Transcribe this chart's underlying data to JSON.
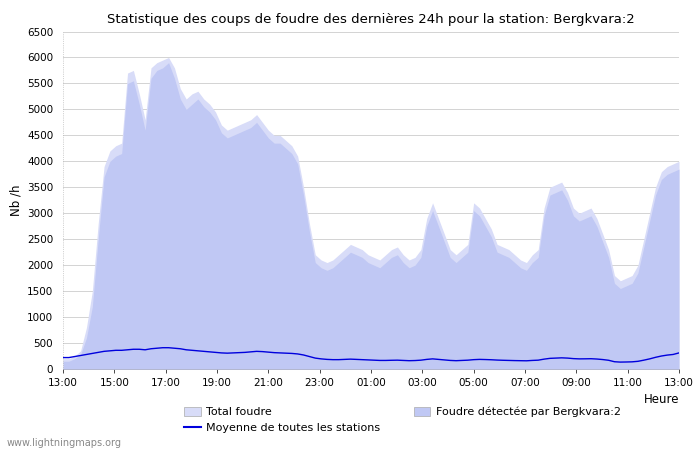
{
  "title": "Statistique des coups de foudre des dernières 24h pour la station: Bergkvara:2",
  "xlabel": "Heure",
  "ylabel": "Nb /h",
  "watermark": "www.lightningmaps.org",
  "ylim": [
    0,
    6500
  ],
  "yticks": [
    0,
    500,
    1000,
    1500,
    2000,
    2500,
    3000,
    3500,
    4000,
    4500,
    5000,
    5500,
    6000,
    6500
  ],
  "x_labels": [
    "13:00",
    "15:00",
    "17:00",
    "19:00",
    "21:00",
    "23:00",
    "01:00",
    "03:00",
    "05:00",
    "07:00",
    "09:00",
    "11:00",
    "13:00"
  ],
  "fill_color": "#d8dcf8",
  "fill_color2": "#c0c8f4",
  "moyenne_color": "#0000dd",
  "background_color": "#ffffff",
  "grid_color": "#cccccc",
  "total_foudre": [
    200,
    200,
    250,
    350,
    800,
    1500,
    2800,
    3900,
    4200,
    4300,
    4350,
    5700,
    5750,
    5300,
    4800,
    5800,
    5900,
    5950,
    6000,
    5800,
    5400,
    5200,
    5300,
    5350,
    5200,
    5100,
    4950,
    4700,
    4600,
    4650,
    4700,
    4750,
    4800,
    4900,
    4750,
    4600,
    4500,
    4500,
    4400,
    4300,
    4100,
    3500,
    2800,
    2200,
    2100,
    2050,
    2100,
    2200,
    2300,
    2400,
    2350,
    2300,
    2200,
    2150,
    2100,
    2200,
    2300,
    2350,
    2200,
    2100,
    2150,
    2300,
    2900,
    3200,
    2900,
    2600,
    2300,
    2200,
    2300,
    2400,
    3200,
    3100,
    2900,
    2700,
    2400,
    2350,
    2300,
    2200,
    2100,
    2050,
    2200,
    2300,
    3100,
    3500,
    3550,
    3600,
    3400,
    3100,
    3000,
    3050,
    3100,
    2900,
    2600,
    2300,
    1800,
    1700,
    1750,
    1800,
    2000,
    2500,
    3000,
    3500,
    3800,
    3900,
    3950,
    4000
  ],
  "bergkvara": [
    150,
    150,
    200,
    280,
    600,
    1200,
    2500,
    3700,
    4000,
    4100,
    4150,
    5500,
    5550,
    5100,
    4600,
    5600,
    5750,
    5800,
    5900,
    5600,
    5200,
    5000,
    5100,
    5200,
    5050,
    4950,
    4800,
    4550,
    4450,
    4500,
    4550,
    4600,
    4650,
    4750,
    4600,
    4450,
    4350,
    4350,
    4250,
    4150,
    3950,
    3350,
    2650,
    2050,
    1950,
    1900,
    1950,
    2050,
    2150,
    2250,
    2200,
    2150,
    2050,
    2000,
    1950,
    2050,
    2150,
    2200,
    2050,
    1950,
    2000,
    2150,
    2750,
    3050,
    2750,
    2450,
    2150,
    2050,
    2150,
    2250,
    3050,
    2950,
    2750,
    2550,
    2250,
    2200,
    2150,
    2050,
    1950,
    1900,
    2050,
    2150,
    2950,
    3350,
    3400,
    3450,
    3250,
    2950,
    2850,
    2900,
    2950,
    2750,
    2450,
    2150,
    1650,
    1550,
    1600,
    1650,
    1850,
    2350,
    2850,
    3350,
    3650,
    3750,
    3800,
    3850
  ],
  "moyenne": [
    220,
    220,
    240,
    260,
    280,
    300,
    320,
    340,
    350,
    360,
    360,
    370,
    380,
    380,
    370,
    390,
    400,
    410,
    410,
    400,
    390,
    370,
    360,
    350,
    340,
    330,
    320,
    310,
    305,
    310,
    315,
    320,
    330,
    340,
    335,
    325,
    315,
    310,
    305,
    300,
    290,
    270,
    240,
    210,
    195,
    185,
    180,
    180,
    185,
    190,
    185,
    180,
    175,
    170,
    165,
    165,
    168,
    170,
    165,
    160,
    163,
    170,
    185,
    195,
    185,
    175,
    165,
    160,
    165,
    170,
    180,
    185,
    182,
    178,
    172,
    168,
    165,
    162,
    160,
    158,
    165,
    170,
    190,
    205,
    210,
    215,
    210,
    200,
    195,
    196,
    198,
    192,
    182,
    168,
    140,
    133,
    135,
    138,
    148,
    170,
    195,
    225,
    250,
    268,
    280,
    310
  ]
}
